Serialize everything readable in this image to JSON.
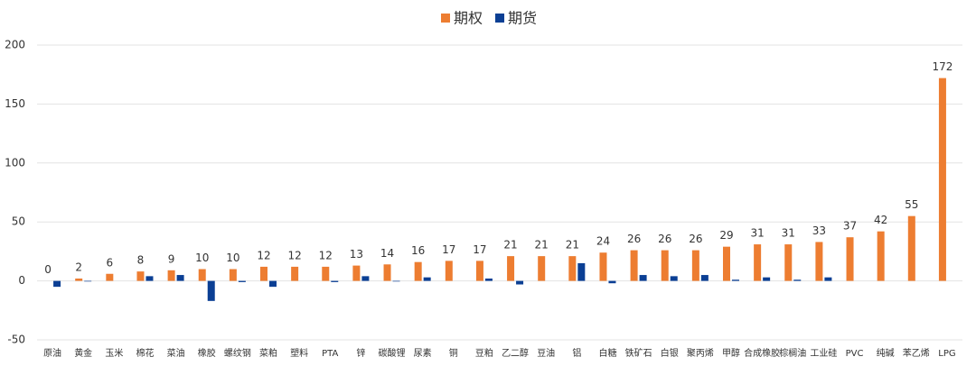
{
  "chart_data": {
    "type": "bar",
    "categories": [
      "原油",
      "黄金",
      "玉米",
      "棉花",
      "菜油",
      "橡胶",
      "螺纹钢",
      "菜粕",
      "塑料",
      "PTA",
      "锌",
      "碳酸锂",
      "尿素",
      "铜",
      "豆粕",
      "乙二醇",
      "豆油",
      "铝",
      "白糖",
      "铁矿石",
      "白银",
      "聚丙烯",
      "甲醇",
      "合成橡胶",
      "棕榈油",
      "工业硅",
      "PVC",
      "纯碱",
      "苯乙烯",
      "LPG"
    ],
    "series": [
      {
        "name": "期权",
        "color": "#ed7d31",
        "show_labels": true,
        "values": [
          0,
          2,
          6,
          8,
          9,
          10,
          10,
          12,
          12,
          12,
          13,
          14,
          16,
          17,
          17,
          21,
          21,
          21,
          24,
          26,
          26,
          26,
          29,
          31,
          31,
          33,
          37,
          42,
          55,
          172
        ]
      },
      {
        "name": "期货",
        "color": "#0b3f94",
        "show_labels": false,
        "values": [
          -5,
          -0.5,
          0,
          4,
          5,
          -17,
          -1,
          -5,
          0,
          -1,
          4,
          -0.5,
          3,
          0,
          2,
          -3,
          0,
          15,
          -2,
          5,
          4,
          5,
          1,
          3,
          1,
          3,
          0,
          0,
          0,
          0
        ]
      }
    ],
    "ylim": [
      -50,
      200
    ],
    "yticks": [
      -50,
      0,
      50,
      100,
      150,
      200
    ],
    "grid": true,
    "legend": "top"
  }
}
